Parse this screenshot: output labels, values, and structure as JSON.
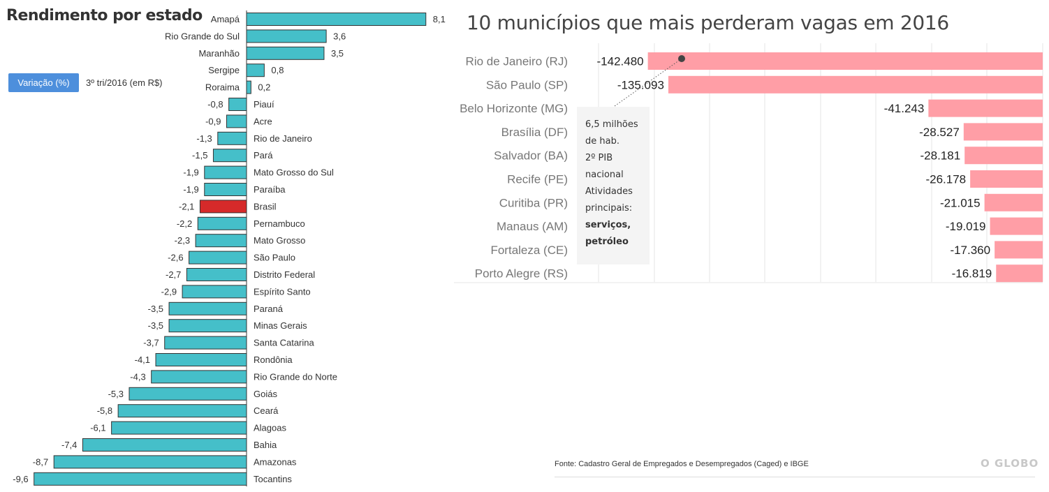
{
  "left": {
    "title": "Rendimento por estado",
    "button_label": "Variação (%)",
    "period": "3º tri/2016 (em R$)",
    "colors": {
      "bar": "#45bfc9",
      "highlight": "#d62a2a",
      "outline": "#333333"
    }
  },
  "right": {
    "title": "10 municípios que mais perderam vagas em 2016",
    "annotation": [
      "6,5 milhões",
      "de hab.",
      "2º PIB",
      "nacional",
      "Atividades",
      "principais:"
    ],
    "annotation_strong": [
      "serviços,",
      "petróleo"
    ],
    "colors": {
      "bar": "#ff9ea6",
      "grid": "#e6e6e6"
    }
  },
  "source": "Fonte: Cadastro Geral de Empregados e Desempregados (Caged) e IBGE",
  "logo": "O GLOBO",
  "chart_data": [
    {
      "type": "bar",
      "orientation": "horizontal",
      "title": "Rendimento por estado",
      "categories": [
        "Amapá",
        "Rio Grande do Sul",
        "Maranhão",
        "Sergipe",
        "Roraima",
        "Piauí",
        "Acre",
        "Rio de Janeiro",
        "Pará",
        "Mato Grosso do Sul",
        "Paraíba",
        "Brasil",
        "Pernambuco",
        "Mato Grosso",
        "São Paulo",
        "Distrito Federal",
        "Espírito Santo",
        "Paraná",
        "Minas Gerais",
        "Santa Catarina",
        "Rondônia",
        "Rio Grande do Norte",
        "Goiás",
        "Ceará",
        "Alagoas",
        "Bahia",
        "Amazonas",
        "Tocantins"
      ],
      "values": [
        8.1,
        3.6,
        3.5,
        0.8,
        0.2,
        -0.8,
        -0.9,
        -1.3,
        -1.5,
        -1.9,
        -1.9,
        -2.1,
        -2.2,
        -2.3,
        -2.6,
        -2.7,
        -2.9,
        -3.5,
        -3.5,
        -3.7,
        -4.1,
        -4.3,
        -5.3,
        -5.8,
        -6.1,
        -7.4,
        -8.7,
        -9.6
      ],
      "labels": [
        "8,1",
        "3,6",
        "3,5",
        "0,8",
        "0,2",
        "-0,8",
        "-0,9",
        "-1,3",
        "-1,5",
        "-1,9",
        "-1,9",
        "-2,1",
        "-2,2",
        "-2,3",
        "-2,6",
        "-2,7",
        "-2,9",
        "-3,5",
        "-3,5",
        "-3,7",
        "-4,1",
        "-4,3",
        "-5,3",
        "-5,8",
        "-6,1",
        "-7,4",
        "-8,7",
        "-9,6"
      ],
      "highlight": "Brasil"
    },
    {
      "type": "bar",
      "orientation": "horizontal",
      "title": "10 municípios que mais perderam vagas em 2016",
      "categories": [
        "Rio de Janeiro (RJ)",
        "São Paulo (SP)",
        "Belo Horizonte (MG)",
        "Brasília (DF)",
        "Salvador (BA)",
        "Recife (PE)",
        "Curitiba (PR)",
        "Manaus (AM)",
        "Fortaleza (CE)",
        "Porto Alegre (RS)"
      ],
      "values": [
        -142480,
        -135093,
        -41243,
        -28527,
        -28181,
        -26178,
        -21015,
        -19019,
        -17360,
        -16819
      ],
      "labels": [
        "-142.480",
        "-135.093",
        "-41.243",
        "-28.527",
        "-28.181",
        "-26.178",
        "-21.015",
        "-19.019",
        "-17.360",
        "-16.819"
      ],
      "grid": true
    }
  ]
}
